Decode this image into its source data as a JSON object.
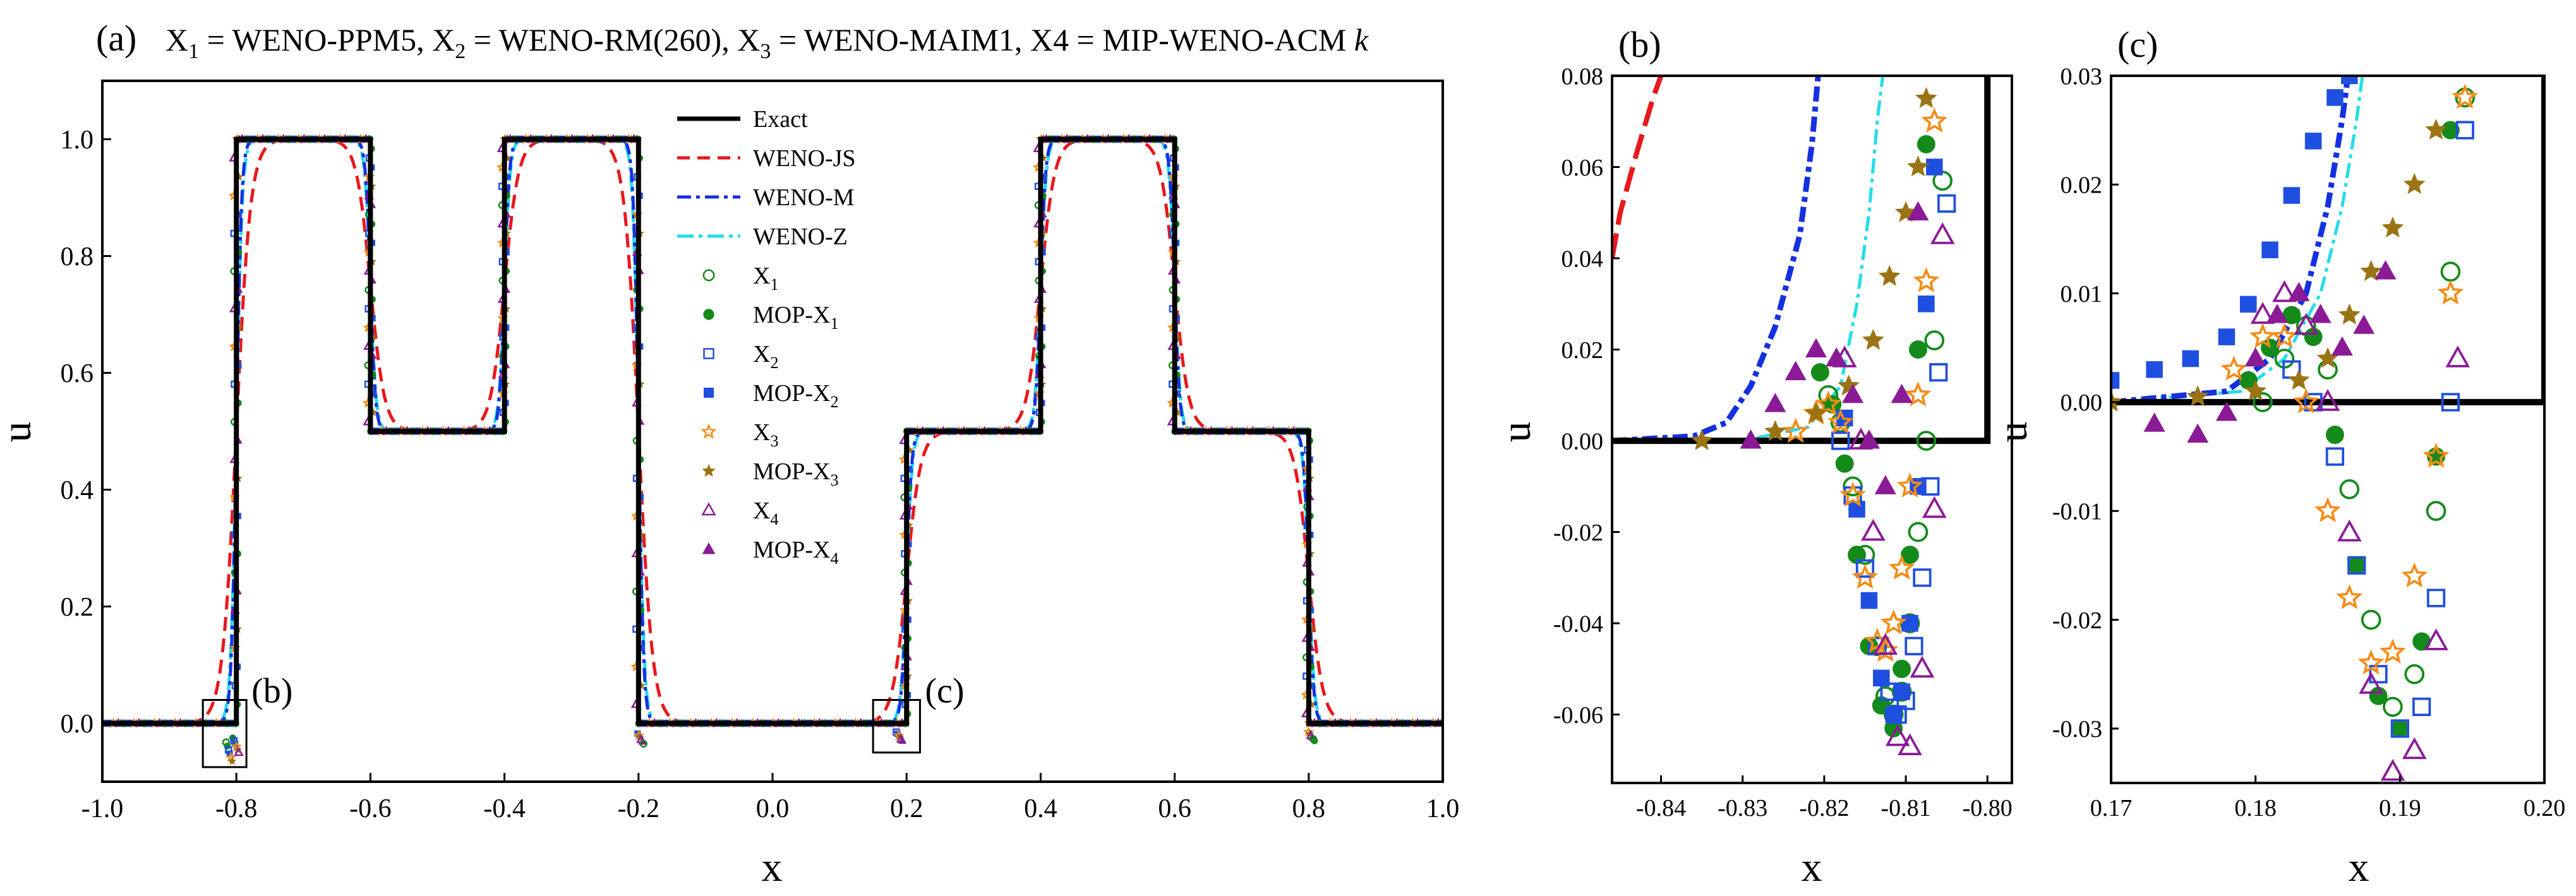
{
  "colors": {
    "exact": "#000000",
    "weno_js": "#e8181c",
    "weno_m": "#1530e0",
    "weno_z": "#22dde8",
    "x1": "#138a1a",
    "x2": "#1f4fe0",
    "x3": "#f58c16",
    "x3b": "#9a7414",
    "x4": "#8a1a95"
  },
  "chart_data": [
    {
      "id": "a",
      "type": "line",
      "panel_label": "(a)",
      "title": "X₁ = WENO-PPM5, X₂ = WENO-RM(260), X₃ = WENO-MAIM1, X4 = MIP-WENO-ACM k",
      "title_parts": {
        "x1": "X",
        "s1": "1",
        "t1": " = WENO-PPM5, ",
        "x2": "X",
        "s2": "2",
        "t2": " = WENO-RM(260), ",
        "x3": "X",
        "s3": "3",
        "t3": " = WENO-MAIM1, X4 = MIP-WENO-ACM ",
        "k": "k"
      },
      "xlabel": "x",
      "ylabel": "u",
      "xlim": [
        -1.0,
        1.0
      ],
      "ylim": [
        -0.1,
        1.1
      ],
      "xticks": [
        "-1.0",
        "-0.8",
        "-0.6",
        "-0.4",
        "-0.2",
        "0.0",
        "0.2",
        "0.4",
        "0.6",
        "0.8",
        "1.0"
      ],
      "yticks": [
        "0.0",
        "0.2",
        "0.4",
        "0.6",
        "0.8",
        "1.0"
      ],
      "exact_x": [
        -1.0,
        -0.8,
        -0.8,
        -0.6,
        -0.6,
        -0.4,
        -0.4,
        -0.2,
        -0.2,
        0.2,
        0.2,
        0.4,
        0.4,
        0.6,
        0.6,
        0.8,
        0.8,
        1.0
      ],
      "exact_y": [
        0,
        0,
        1,
        1,
        0.5,
        0.5,
        1,
        1,
        0,
        0,
        0.5,
        0.5,
        1,
        1,
        0.5,
        0.5,
        0,
        0
      ],
      "legend": [
        {
          "key": "exact",
          "label": "Exact",
          "sub": ""
        },
        {
          "key": "weno_js",
          "label": "WENO-JS",
          "sub": ""
        },
        {
          "key": "weno_m",
          "label": "WENO-M",
          "sub": ""
        },
        {
          "key": "weno_z",
          "label": "WENO-Z",
          "sub": ""
        },
        {
          "key": "x1",
          "label": "X",
          "sub": "1"
        },
        {
          "key": "mop_x1",
          "label": "MOP-X",
          "sub": "1"
        },
        {
          "key": "x2",
          "label": "X",
          "sub": "2"
        },
        {
          "key": "mop_x2",
          "label": "MOP-X",
          "sub": "2"
        },
        {
          "key": "x3",
          "label": "X",
          "sub": "3"
        },
        {
          "key": "mop_x3",
          "label": "MOP-X",
          "sub": "3"
        },
        {
          "key": "x4",
          "label": "X",
          "sub": "4"
        },
        {
          "key": "mop_x4",
          "label": "MOP-X",
          "sub": "4"
        }
      ],
      "zoom_boxes": [
        {
          "label": "(b)",
          "x": [
            -0.85,
            -0.785
          ],
          "y": [
            -0.075,
            0.04
          ]
        },
        {
          "label": "(c)",
          "x": [
            0.15,
            0.22
          ],
          "y": [
            -0.05,
            0.04
          ]
        }
      ]
    },
    {
      "id": "b",
      "type": "scatter",
      "panel_label": "(b)",
      "xlabel": "x",
      "ylabel": "u",
      "xlim": [
        -0.846,
        -0.797
      ],
      "ylim": [
        -0.075,
        0.08
      ],
      "xticks": [
        "-0.84",
        "-0.83",
        "-0.82",
        "-0.81",
        "-0.80"
      ],
      "yticks": [
        "-0.06",
        "-0.04",
        "-0.02",
        "0.00",
        "0.02",
        "0.04",
        "0.06",
        "0.08"
      ],
      "exact_x": [
        -0.846,
        -0.8,
        -0.8
      ],
      "exact_y": [
        0,
        0,
        0.08
      ],
      "series": {
        "weno_js": {
          "x": [
            -0.846,
            -0.845,
            -0.843,
            -0.841,
            -0.839
          ],
          "y": [
            0.04,
            0.05,
            0.063,
            0.075,
            0.085
          ]
        },
        "weno_m": {
          "x": [
            -0.846,
            -0.836,
            -0.832,
            -0.829,
            -0.826,
            -0.823,
            -0.8215,
            -0.8205
          ],
          "y": [
            0.0,
            0.001,
            0.004,
            0.012,
            0.025,
            0.045,
            0.065,
            0.085
          ]
        },
        "weno_z": {
          "x": [
            -0.846,
            -0.83,
            -0.822,
            -0.818,
            -0.816,
            -0.8145,
            -0.8135,
            -0.8125
          ],
          "y": [
            0.0,
            0.0,
            0.003,
            0.012,
            0.03,
            0.05,
            0.07,
            0.085
          ]
        },
        "x1": {
          "x": [
            -0.8195,
            -0.818,
            -0.8165,
            -0.815,
            -0.8135,
            -0.8125,
            -0.8115,
            -0.8105,
            -0.8095,
            -0.8085,
            -0.8075,
            -0.8065,
            -0.8055
          ],
          "y": [
            0.01,
            0.004,
            -0.01,
            -0.025,
            -0.045,
            -0.056,
            -0.06,
            -0.055,
            -0.04,
            -0.02,
            0.0,
            0.022,
            0.057
          ]
        },
        "mop_x1": {
          "x": [
            -0.8205,
            -0.819,
            -0.8175,
            -0.816,
            -0.8145,
            -0.813,
            -0.8115,
            -0.8105,
            -0.8095,
            -0.8085,
            -0.8075
          ],
          "y": [
            0.015,
            0.008,
            -0.005,
            -0.025,
            -0.045,
            -0.058,
            -0.063,
            -0.05,
            -0.025,
            0.02,
            0.065
          ]
        },
        "x2": {
          "x": [
            -0.818,
            -0.8165,
            -0.815,
            -0.8135,
            -0.812,
            -0.811,
            -0.81,
            -0.809,
            -0.808,
            -0.807,
            -0.806,
            -0.805
          ],
          "y": [
            0.0,
            -0.012,
            -0.028,
            -0.045,
            -0.055,
            -0.06,
            -0.057,
            -0.045,
            -0.03,
            -0.01,
            0.015,
            0.052
          ]
        },
        "mop_x2": {
          "x": [
            -0.8175,
            -0.816,
            -0.8145,
            -0.813,
            -0.8115,
            -0.8105,
            -0.8095,
            -0.8085,
            -0.8075,
            -0.8065
          ],
          "y": [
            0.005,
            -0.015,
            -0.035,
            -0.052,
            -0.06,
            -0.055,
            -0.04,
            -0.01,
            0.03,
            0.06
          ]
        },
        "x3": {
          "x": [
            -0.8235,
            -0.821,
            -0.8195,
            -0.818,
            -0.8165,
            -0.815,
            -0.8135,
            -0.8125,
            -0.8115,
            -0.8105,
            -0.8095,
            -0.8085,
            -0.8075,
            -0.8065
          ],
          "y": [
            0.002,
            0.006,
            0.008,
            0.004,
            -0.012,
            -0.03,
            -0.044,
            -0.046,
            -0.04,
            -0.028,
            -0.01,
            0.01,
            0.035,
            0.07
          ]
        },
        "mop_x3": {
          "x": [
            -0.835,
            -0.826,
            -0.821,
            -0.817,
            -0.814,
            -0.812,
            -0.81,
            -0.8085,
            -0.8075
          ],
          "y": [
            0.0,
            0.002,
            0.006,
            0.012,
            0.022,
            0.036,
            0.05,
            0.06,
            0.075
          ]
        },
        "x4": {
          "x": [
            -0.8175,
            -0.8155,
            -0.814,
            -0.8125,
            -0.811,
            -0.8095,
            -0.808,
            -0.8065,
            -0.8055
          ],
          "y": [
            0.018,
            0.0,
            -0.02,
            -0.045,
            -0.065,
            -0.067,
            -0.05,
            -0.015,
            0.045
          ]
        },
        "mop_x4": {
          "x": [
            -0.829,
            -0.826,
            -0.8235,
            -0.821,
            -0.8185,
            -0.8165,
            -0.8145,
            -0.8125,
            -0.8105,
            -0.8085
          ],
          "y": [
            0.0,
            0.008,
            0.015,
            0.02,
            0.018,
            0.01,
            0.0,
            -0.01,
            0.01,
            0.05
          ]
        }
      }
    },
    {
      "id": "c",
      "type": "scatter",
      "panel_label": "(c)",
      "xlabel": "x",
      "ylabel": "u",
      "xlim": [
        0.17,
        0.2
      ],
      "ylim": [
        -0.035,
        0.03
      ],
      "xticks": [
        "0.17",
        "0.18",
        "0.19",
        "0.20"
      ],
      "yticks": [
        "-0.03",
        "-0.02",
        "-0.01",
        "0.00",
        "0.01",
        "0.02",
        "0.03"
      ],
      "exact_x": [
        0.17,
        0.2,
        0.2
      ],
      "exact_y": [
        0,
        0,
        0.03
      ],
      "series": {
        "weno_js": {
          "x": [],
          "y": []
        },
        "weno_m": {
          "x": [
            0.17,
            0.178,
            0.181,
            0.1835,
            0.185,
            0.186,
            0.1865
          ],
          "y": [
            0.0,
            0.001,
            0.004,
            0.01,
            0.018,
            0.026,
            0.031
          ]
        },
        "weno_z": {
          "x": [
            0.17,
            0.179,
            0.182,
            0.1845,
            0.186,
            0.187,
            0.1875
          ],
          "y": [
            0.0,
            0.001,
            0.004,
            0.01,
            0.018,
            0.026,
            0.031
          ]
        },
        "x1": {
          "x": [
            0.1805,
            0.182,
            0.1835,
            0.185,
            0.1865,
            0.188,
            0.1895,
            0.191,
            0.1925,
            0.1935,
            0.1945
          ],
          "y": [
            0.0,
            0.004,
            0.007,
            0.003,
            -0.008,
            -0.02,
            -0.028,
            -0.025,
            -0.01,
            0.012,
            0.028
          ]
        },
        "mop_x1": {
          "x": [
            0.1795,
            0.181,
            0.1825,
            0.184,
            0.1855,
            0.187,
            0.1885,
            0.19,
            0.1915,
            0.1925,
            0.1935
          ],
          "y": [
            0.002,
            0.005,
            0.008,
            0.006,
            -0.003,
            -0.015,
            -0.027,
            -0.03,
            -0.022,
            -0.005,
            0.025
          ]
        },
        "x2": {
          "x": [
            0.1825,
            0.184,
            0.1855,
            0.187,
            0.1885,
            0.19,
            0.1915,
            0.1925,
            0.1935,
            0.1945
          ],
          "y": [
            0.003,
            0.0,
            -0.005,
            -0.015,
            -0.025,
            -0.03,
            -0.028,
            -0.018,
            0.0,
            0.025
          ]
        },
        "mop_x2": {
          "x": [
            0.17,
            0.173,
            0.1755,
            0.178,
            0.1795,
            0.181,
            0.1825,
            0.184,
            0.1855,
            0.1865
          ],
          "y": [
            0.002,
            0.003,
            0.004,
            0.006,
            0.009,
            0.014,
            0.019,
            0.024,
            0.028,
            0.03
          ]
        },
        "x3": {
          "x": [
            0.1785,
            0.1805,
            0.182,
            0.1835,
            0.185,
            0.1865,
            0.188,
            0.1895,
            0.191,
            0.1925,
            0.1935,
            0.1945
          ],
          "y": [
            0.003,
            0.006,
            0.006,
            0.0,
            -0.01,
            -0.018,
            -0.024,
            -0.023,
            -0.016,
            -0.005,
            0.01,
            0.028
          ]
        },
        "mop_x3": {
          "x": [
            0.17,
            0.176,
            0.18,
            0.183,
            0.185,
            0.1865,
            0.188,
            0.1895,
            0.191,
            0.1925
          ],
          "y": [
            0.0,
            0.0005,
            0.001,
            0.002,
            0.004,
            0.008,
            0.012,
            0.016,
            0.02,
            0.025
          ]
        },
        "x4": {
          "x": [
            0.1805,
            0.182,
            0.1835,
            0.185,
            0.1865,
            0.188,
            0.1895,
            0.191,
            0.1925,
            0.194
          ],
          "y": [
            0.008,
            0.01,
            0.007,
            0.0,
            -0.012,
            -0.026,
            -0.034,
            -0.032,
            -0.022,
            0.004
          ]
        },
        "mop_x4": {
          "x": [
            0.173,
            0.176,
            0.178,
            0.18,
            0.1815,
            0.183,
            0.1845,
            0.186,
            0.1875,
            0.189
          ],
          "y": [
            -0.002,
            -0.003,
            -0.001,
            0.004,
            0.008,
            0.01,
            0.008,
            0.005,
            0.007,
            0.012
          ]
        }
      }
    }
  ]
}
